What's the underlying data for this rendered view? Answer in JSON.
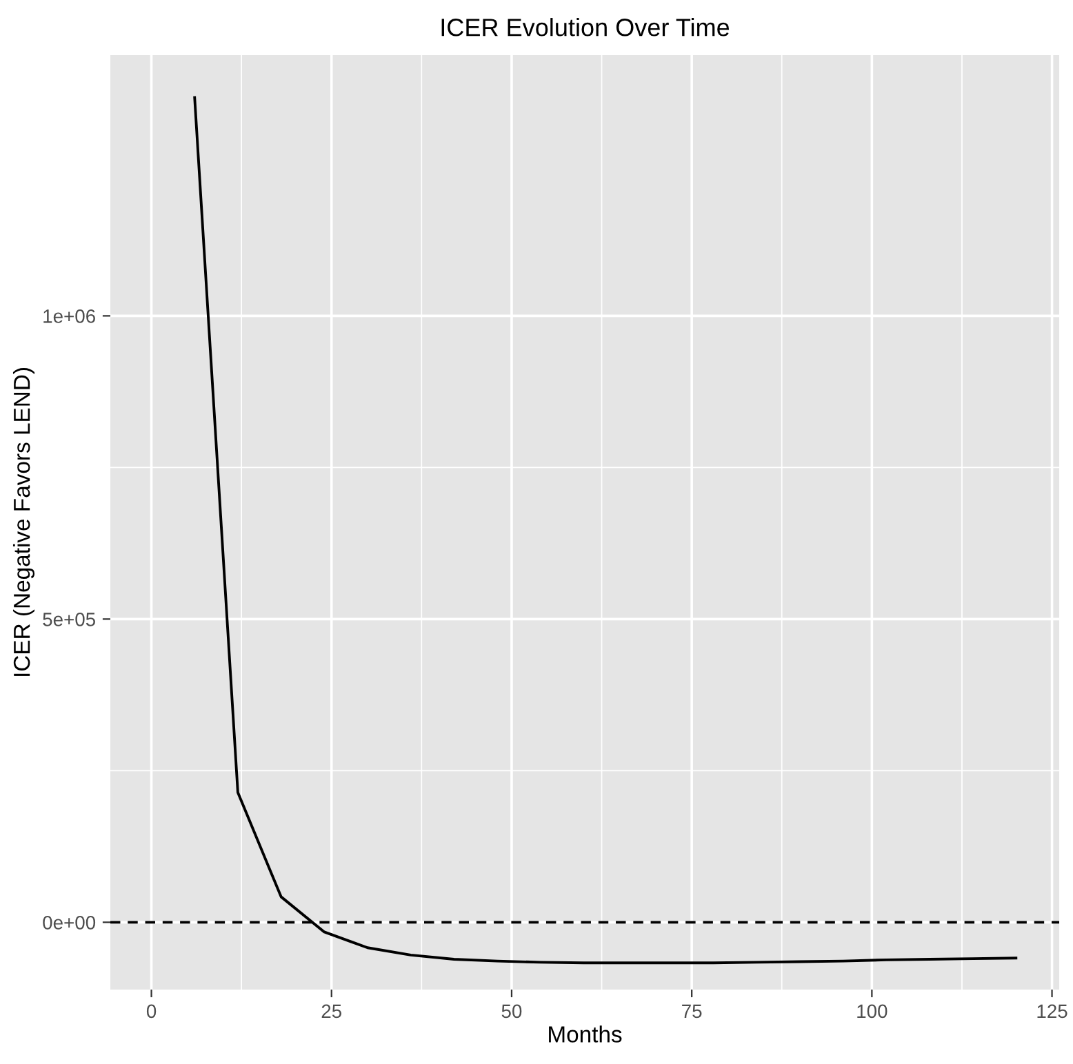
{
  "chart_data": {
    "type": "line",
    "title": "ICER Evolution Over Time",
    "xlabel": "Months",
    "ylabel": "ICER (Negative Favors LEND)",
    "x": [
      6,
      12,
      18,
      24,
      30,
      36,
      42,
      48,
      54,
      60,
      66,
      72,
      78,
      84,
      90,
      96,
      102,
      108,
      114,
      120
    ],
    "series": [
      {
        "color": "#000000",
        "values": [
          1360000,
          214000,
          42000,
          -16000,
          -42000,
          -54000,
          -61000,
          -64000,
          -66000,
          -67000,
          -67000,
          -67000,
          -67000,
          -66000,
          -65000,
          -64000,
          -62000,
          -61000,
          -60000,
          -59000
        ]
      }
    ],
    "xlim": [
      -5.7,
      126
    ],
    "ylim": [
      -111000,
      1430000
    ],
    "xticks": [
      0,
      25,
      50,
      75,
      100,
      125
    ],
    "yticks": [
      {
        "value": 0,
        "label": "0e+00"
      },
      {
        "value": 500000,
        "label": "5e+05"
      },
      {
        "value": 1000000,
        "label": "1e+06"
      }
    ],
    "ref_lines": [
      {
        "axis": "y",
        "value": 0,
        "label": null,
        "color": "#000000",
        "line_style": "dashed"
      }
    ],
    "grid": true,
    "marker": "none",
    "line_style": "solid"
  }
}
